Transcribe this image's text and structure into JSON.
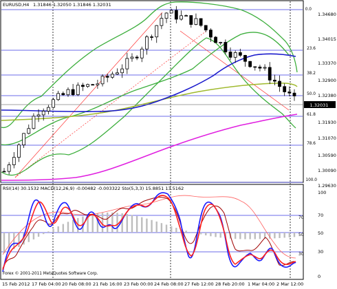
{
  "header": {
    "symbol": "EURUSD,H4",
    "ohlc": "1.31846 1.32050 1.31846 1.32031",
    "current_price": "1.32031"
  },
  "price_axis": [
    "1.34680",
    "1.34015",
    "1.33370",
    "1.32900",
    "1.32380",
    "1.31930",
    "1.31070",
    "1.30590",
    "1.30090",
    "1.29630"
  ],
  "fib_levels": [
    "0.0",
    "23.6",
    "38.2",
    "50.0",
    "61.8",
    "78.6",
    "100.0"
  ],
  "indicator": {
    "label": "RSI(14) 30.1532  MACD(12,26,9) -0.00482 -0.003322  Sto(5,3,3) 15.8851 13.5162",
    "axis": [
      "100",
      "70",
      "50",
      "30",
      "0"
    ]
  },
  "time_axis": [
    "15 Feb 2012",
    "17 Feb 04:00",
    "20 Feb 08:00",
    "21 Feb 16:00",
    "23 Feb 00:00",
    "24 Feb 08:00",
    "27 Feb 12:00",
    "28 Feb 20:00",
    "1 Mar 04:00",
    "2 Mar 12:00"
  ],
  "watermark": "Forex  © 2001-2011 MetaQuotes Software Corp.",
  "chart_data": {
    "type": "line",
    "symbol": "EURUSD",
    "timeframe": "H4",
    "ylim": [
      1.2963,
      1.3495
    ],
    "x": [
      "15 Feb 2012",
      "17 Feb 04:00",
      "20 Feb 08:00",
      "21 Feb 16:00",
      "23 Feb 00:00",
      "24 Feb 08:00",
      "27 Feb 12:00",
      "28 Feb 20:00",
      "1 Mar 04:00",
      "2 Mar 12:00"
    ],
    "series": [
      {
        "name": "EURUSD,H4",
        "values": [
          1.299,
          1.317,
          1.323,
          1.326,
          1.333,
          1.347,
          1.344,
          1.335,
          1.33,
          1.3203
        ]
      }
    ],
    "fib_levels": [
      {
        "label": "0.0",
        "price": 1.3481
      },
      {
        "label": "23.6",
        "price": 1.336
      },
      {
        "label": "38.2",
        "price": 1.3285
      },
      {
        "label": "50.0",
        "price": 1.3224
      },
      {
        "label": "61.8",
        "price": 1.3163
      },
      {
        "label": "78.6",
        "price": 1.3077
      },
      {
        "label": "100.0",
        "price": 1.2966
      }
    ]
  }
}
